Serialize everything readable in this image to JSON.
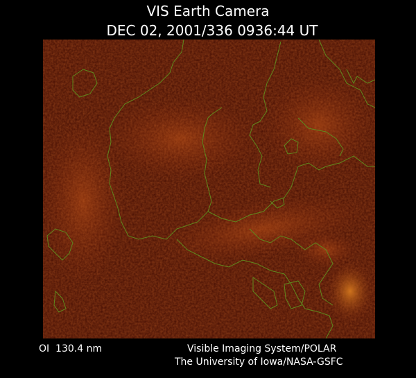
{
  "header": {
    "title": "VIS Earth Camera",
    "timestamp": "DEC 02, 2001/336 0936:44 UT"
  },
  "footer": {
    "filter": "OI  130.4 nm",
    "instrument": "Visible Imaging System/POLAR",
    "institution": "The University of Iowa/NASA-GSFC"
  }
}
